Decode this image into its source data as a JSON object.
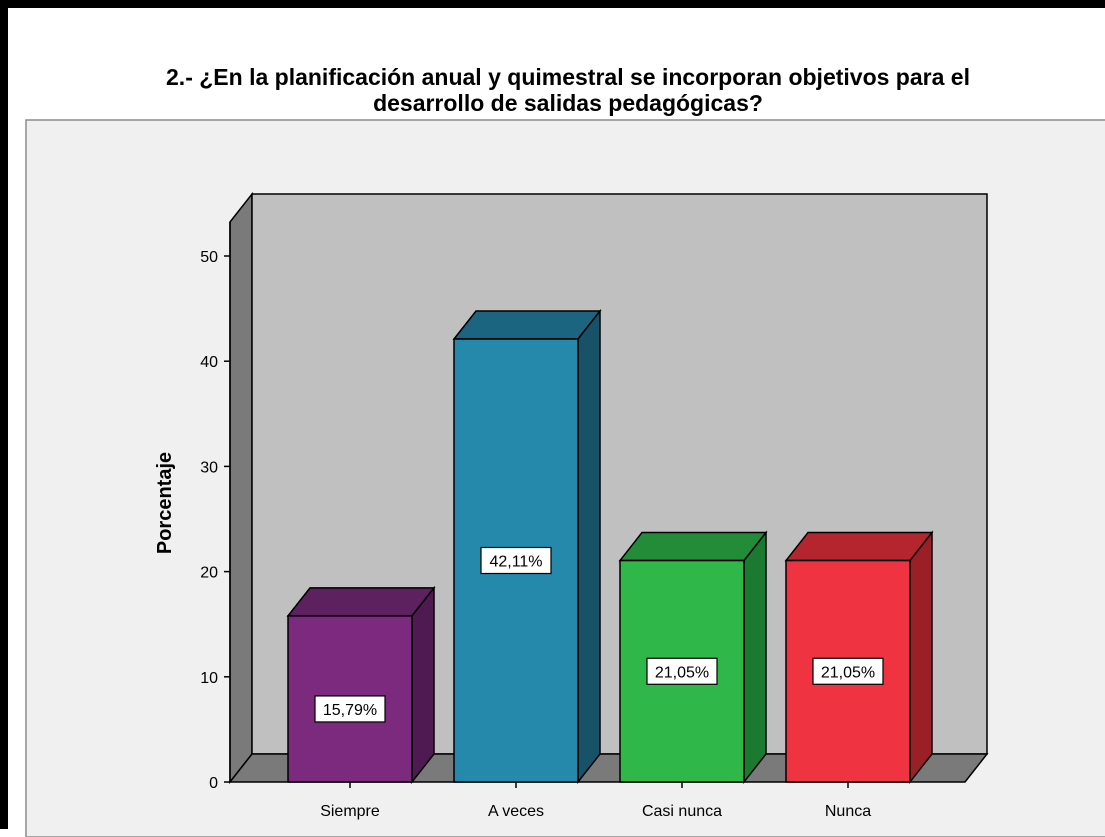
{
  "chart_data": {
    "type": "bar",
    "title_line1": "2.- ¿En la planificación anual y quimestral se incorporan objetivos para el",
    "title_line2": "desarrollo de salidas pedagógicas?",
    "xlabel": "",
    "ylabel": "Porcentaje",
    "ylim": [
      0,
      50
    ],
    "yticks": [
      0,
      10,
      20,
      30,
      40,
      50
    ],
    "grid": false,
    "legend": "none",
    "categories": [
      "Siempre",
      "A veces",
      "Casi nunca",
      "Nunca"
    ],
    "values": [
      15.79,
      42.11,
      21.05,
      21.05
    ],
    "data_labels": [
      "15,79%",
      "42,11%",
      "21,05%",
      "21,05%"
    ],
    "colors": [
      "#7b2a7e",
      "#2589ac",
      "#2fb74a",
      "#ef3340"
    ],
    "side_colors": [
      "#4e1a51",
      "#175268",
      "#1c7a30",
      "#9b1f27"
    ],
    "top_colors": [
      "#5d2160",
      "#1c6580",
      "#238c39",
      "#b5252e"
    ],
    "background_color": "#f0f0f0",
    "plot_area_color": "#c0c0c0",
    "floor_color": "#7a7a7a",
    "wall_color": "#7a7a7a"
  }
}
